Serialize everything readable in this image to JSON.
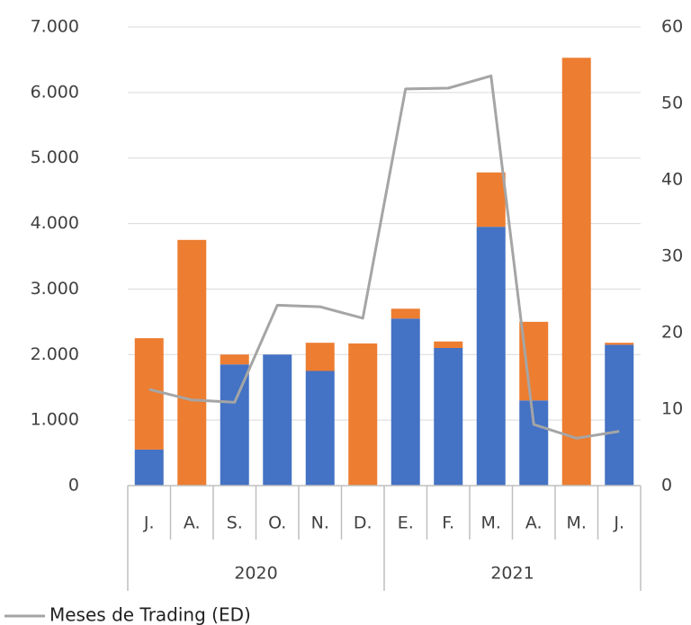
{
  "chart_data": {
    "type": "bar",
    "groups": [
      {
        "name": "2020",
        "categories": [
          "J.",
          "A.",
          "S.",
          "O.",
          "N.",
          "D."
        ]
      },
      {
        "name": "2021",
        "categories": [
          "E.",
          "F.",
          "M.",
          "A.",
          "M.",
          "J."
        ]
      }
    ],
    "series": [
      {
        "color": "#4472c4",
        "values": [
          550,
          0,
          1850,
          2000,
          1750,
          0,
          2550,
          2100,
          3950,
          1300,
          0,
          2150
        ]
      },
      {
        "color": "#ed7d31",
        "values": [
          1700,
          3750,
          150,
          0,
          430,
          2170,
          150,
          100,
          830,
          1200,
          6530,
          30
        ]
      },
      {
        "name": "Meses de Trading (ED)",
        "type": "line",
        "axis": "y2",
        "color": "#a5a5a5",
        "values": [
          12.6,
          11.2,
          10.9,
          23.6,
          23.4,
          21.9,
          51.9,
          52,
          53.6,
          8,
          6.2,
          7.1
        ]
      }
    ],
    "ylim": [
      0,
      7000
    ],
    "yticks": [
      0,
      {
        "value": 1000,
        "label": "1.000"
      },
      {
        "value": 2000,
        "label": "2.000"
      },
      {
        "value": 3000,
        "label": "3.000"
      },
      {
        "value": 4000,
        "label": "4.000"
      },
      {
        "value": 5000,
        "label": "5.000"
      },
      {
        "value": 6000,
        "label": "6.000"
      },
      {
        "value": 7000,
        "label": "7.000"
      }
    ],
    "y2lim": [
      0,
      60
    ],
    "y2ticks": [
      0,
      10,
      20,
      30,
      40,
      50,
      60
    ],
    "grid": true,
    "stacked": true
  }
}
